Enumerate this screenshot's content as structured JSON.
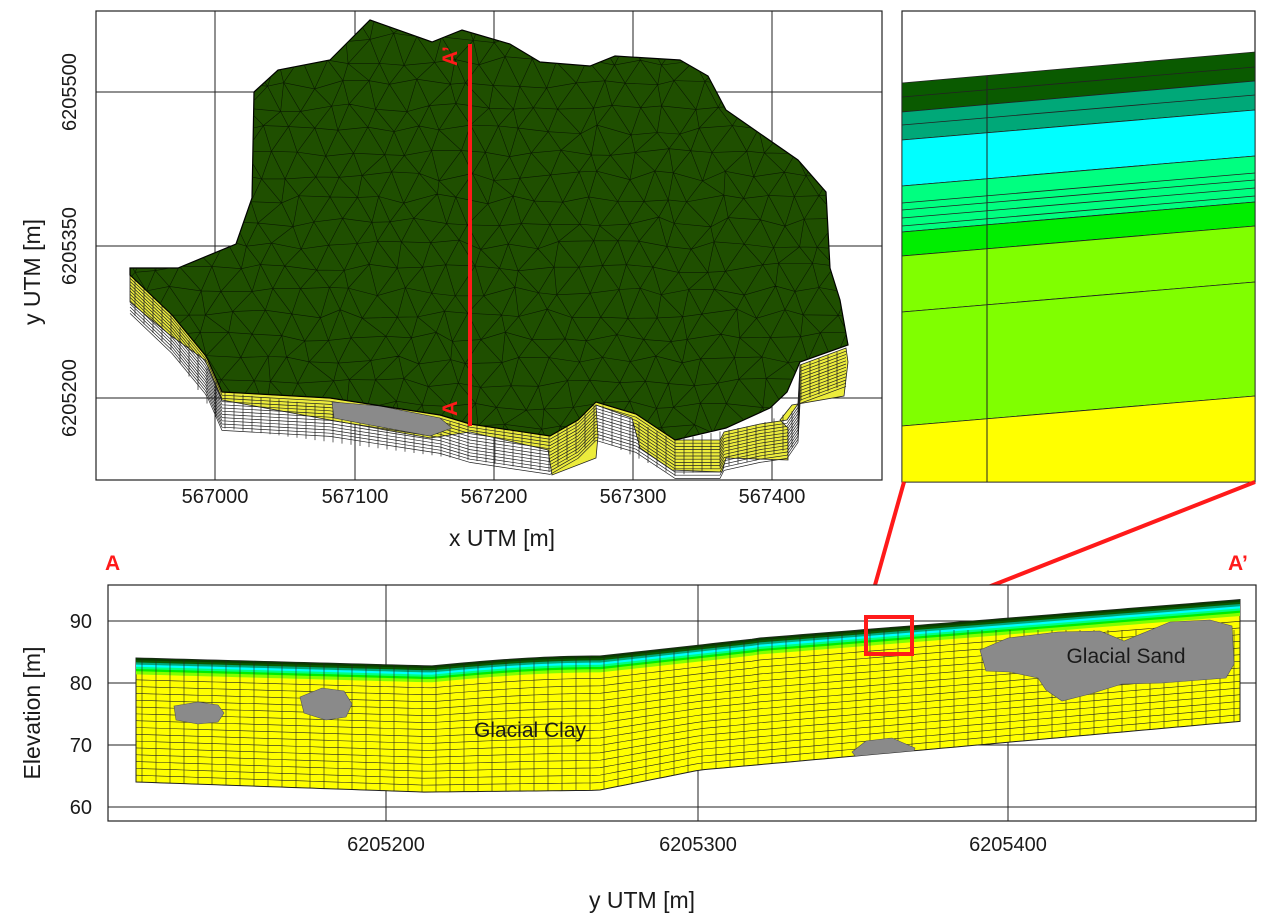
{
  "colors": {
    "accent_red": "#ff1a1a",
    "mesh_green": "#1f4f00",
    "mesh_line": "#0a1a00",
    "clay_yellow": "#ffff00",
    "side_yellow": "#ecec3c",
    "sand_gray": "#8a8a8a",
    "grid_line": "#222222"
  },
  "plan_view": {
    "xlabel": "x UTM [m]",
    "ylabel": "y UTM [m]",
    "x_ticks": [
      "567000",
      "567100",
      "567200",
      "567300",
      "567400"
    ],
    "y_ticks": [
      "6205500",
      "6205350",
      "6205200"
    ],
    "marker_top": "A’",
    "marker_bottom": "A"
  },
  "zoom_inset": {
    "layer_colors": [
      "#0a5a00",
      "#00a878",
      "#00ffff",
      "#00ff80",
      "#00ee00",
      "#80ff00",
      "#80ff00",
      "#ffff00"
    ]
  },
  "cross_section": {
    "xlabel": "y UTM [m]",
    "ylabel": "Elevation [m]",
    "x_ticks": [
      "6205200",
      "6205300",
      "6205400"
    ],
    "y_ticks": [
      "90",
      "80",
      "70",
      "60"
    ],
    "start_label": "A",
    "end_label": "A’",
    "clay_label": "Glacial Clay",
    "sand_label": "Glacial Sand"
  }
}
